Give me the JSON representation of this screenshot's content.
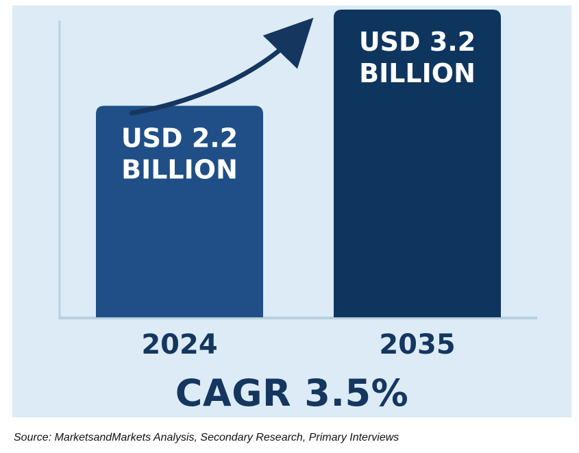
{
  "colors": {
    "background": "#dcebf5",
    "axis": "#b9cfdf",
    "text_dark": "#15365f",
    "arrow": "#15365f"
  },
  "chart_data": {
    "type": "bar",
    "categories": [
      "2024",
      "2035"
    ],
    "values": [
      2.2,
      3.2
    ],
    "value_labels": [
      [
        "USD 2.2",
        "BILLION"
      ],
      [
        "USD 3.2",
        "BILLION"
      ]
    ],
    "bar_colors": [
      "#1f4f86",
      "#0e355e"
    ],
    "unit": "USD Billion",
    "grid": false,
    "legend": "none",
    "annotation": "upward-arrow"
  },
  "footer": {
    "cagr_text": "CAGR 3.5%",
    "source_text": "Source: MarketsandMarkets Analysis, Secondary Research, Primary Interviews"
  }
}
